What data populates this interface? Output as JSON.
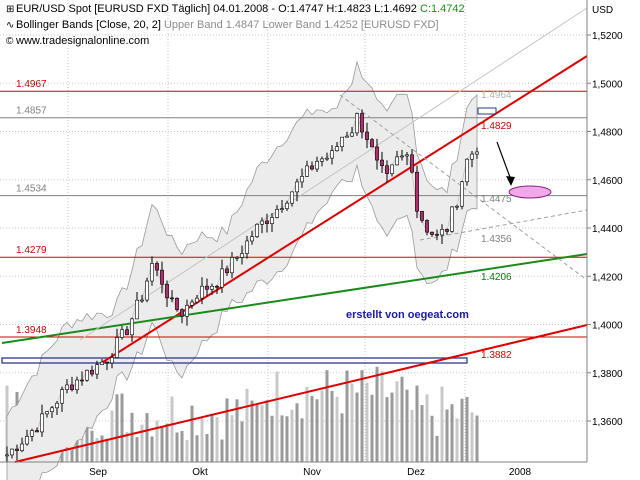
{
  "header": {
    "line1": {
      "instrument": "EUR/USD Spot [EURUSD FXD  Täglich]",
      "date": "04.01.2008",
      "ohl": "- O:1.4747 H:1.4823 L:1.4692",
      "close": "C:1.4742"
    },
    "line2": {
      "indicator": "Bollinger Bands [Close, 20, 2]",
      "bands": "Upper Band 1.4847 Lower Band 1.4252 [EURUSD FXD]"
    },
    "line3": {
      "copyright": "www.tradesignalonline.com"
    },
    "icons": [
      "chart-icon",
      "bollinger-icon",
      "copyright-icon"
    ]
  },
  "watermark": "erstellt von oegeat.com",
  "chart_data": {
    "type": "candlestick",
    "title": "EUR/USD Spot [EURUSD FXD  Täglich]",
    "y_axis": {
      "label": "USD",
      "ticks": [
        "1,5200",
        "1,5000",
        "1,4800",
        "1,4600",
        "1,4400",
        "1,4200",
        "1,4000",
        "1,3800",
        "1,3600"
      ],
      "range": [
        1.34,
        1.53
      ]
    },
    "x_axis": {
      "ticks": [
        "Sep",
        "Okt",
        "Nov",
        "Dez",
        "2008"
      ]
    },
    "horizontal_levels": [
      {
        "label": "1.4967",
        "value": 1.4967,
        "color": "#d40000"
      },
      {
        "label": "1.4857",
        "value": 1.4857,
        "color": "#808080"
      },
      {
        "label": "1.4534",
        "value": 1.4534,
        "color": "#808080"
      },
      {
        "label": "1.4279",
        "value": 1.4279,
        "color": "#d40000"
      },
      {
        "label": "1.3948",
        "value": 1.3948,
        "color": "#d40000"
      }
    ],
    "right_labels": [
      {
        "label": "1.4964",
        "color": "#b0b0b0"
      },
      {
        "label": "1.4829",
        "color": "#d40000"
      },
      {
        "label": "1.4475",
        "color": "#808080"
      },
      {
        "label": "1.4356",
        "color": "#808080"
      },
      {
        "label": "1.4206",
        "color": "#008000"
      },
      {
        "label": "1.3882",
        "color": "#d40000"
      }
    ],
    "colors": {
      "up_candle": "#ffffff",
      "down_candle": "#b0306e",
      "trend_red": "#e00000",
      "trend_green": "#1a8a1a",
      "support_navy": "#2a3a8a",
      "band_fill": "#ececec",
      "target_ellipse": "#f0a8e8",
      "volume": "#9a9a9a"
    }
  }
}
